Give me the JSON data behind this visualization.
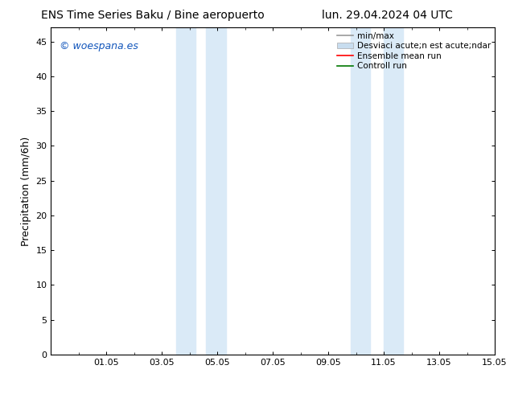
{
  "title_left": "ENS Time Series Baku / Bine aeropuerto",
  "title_right": "lun. 29.04.2024 04 UTC",
  "ylabel": "Precipitation (mm/6h)",
  "watermark": "© woespana.es",
  "watermark_color": "#1155bb",
  "ylim": [
    0,
    47
  ],
  "yticks": [
    0,
    5,
    10,
    15,
    20,
    25,
    30,
    35,
    40,
    45
  ],
  "xtick_labels": [
    "01.05",
    "03.05",
    "05.05",
    "07.05",
    "09.05",
    "11.05",
    "13.05",
    "15.05"
  ],
  "xtick_positions": [
    2,
    4,
    6,
    8,
    10,
    12,
    14,
    16
  ],
  "xlim": [
    0,
    16
  ],
  "shaded_bands": [
    {
      "x_start": 4.5,
      "x_end": 5.2
    },
    {
      "x_start": 5.6,
      "x_end": 6.3
    },
    {
      "x_start": 10.8,
      "x_end": 11.5
    },
    {
      "x_start": 12.0,
      "x_end": 12.7
    }
  ],
  "shaded_color": "#daeaf7",
  "legend_label_1": "min/max",
  "legend_label_2": "Desviaci acute;n est acute;ndar",
  "legend_label_3": "Ensemble mean run",
  "legend_label_4": "Controll run",
  "legend_color_1": "#999999",
  "legend_color_2": "#c8ddef",
  "legend_color_3": "#ff0000",
  "legend_color_4": "#007700",
  "background_color": "#ffffff",
  "title_fontsize": 10,
  "tick_fontsize": 8,
  "ylabel_fontsize": 9,
  "watermark_fontsize": 9,
  "legend_fontsize": 7.5
}
